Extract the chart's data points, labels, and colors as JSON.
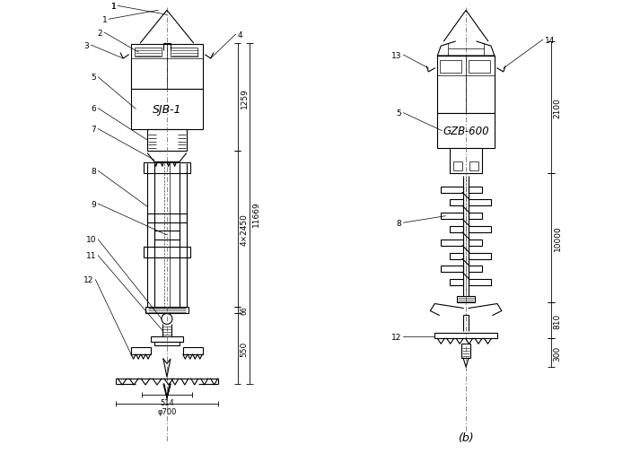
{
  "bg_color": "#ffffff",
  "line_color": "#000000",
  "fig_width": 7.13,
  "fig_height": 5.06,
  "dpi": 100,
  "label_b": "(b)",
  "left_machine_label": "SJB-1",
  "right_machine_label": "GZB-600",
  "left_dims": {
    "d1259": "1259",
    "d11669": "11669",
    "d4x2450": "4×2450",
    "d66": "66",
    "d550": "550",
    "d514": "514",
    "dphi700": "φ700"
  },
  "right_dims": {
    "d2100": "2100",
    "d10000": "10000",
    "d810": "810",
    "d300": "300"
  }
}
